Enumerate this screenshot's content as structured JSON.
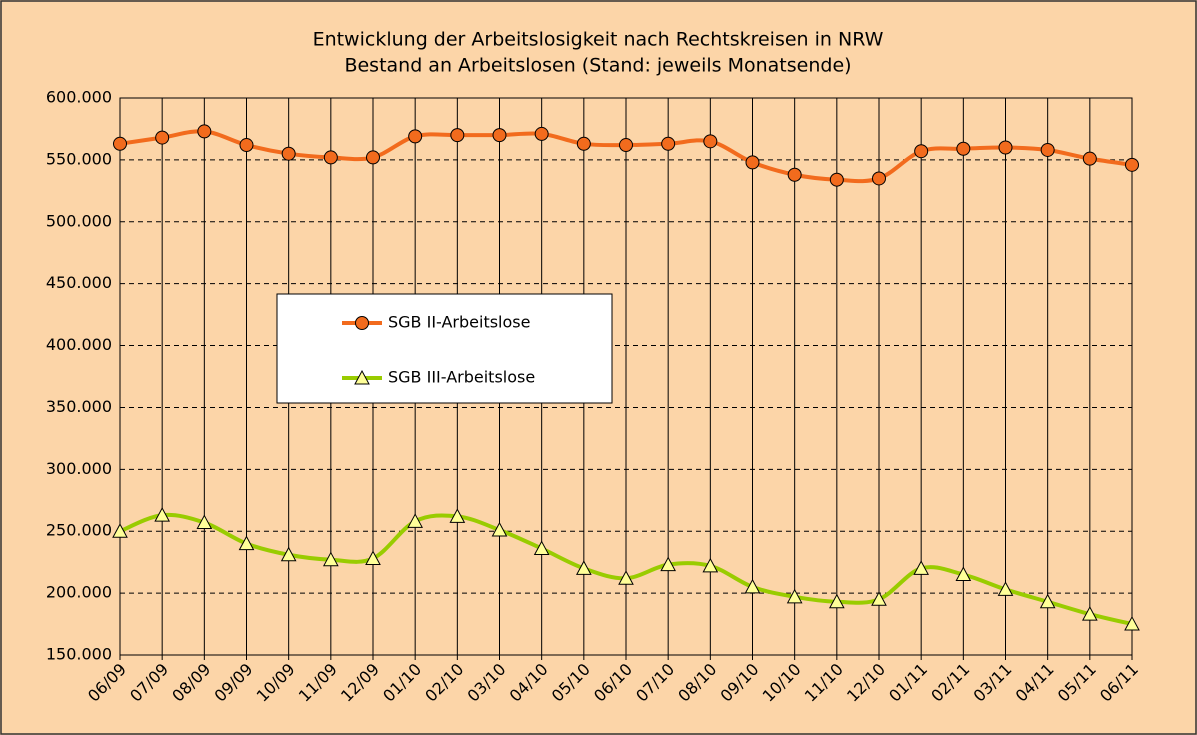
{
  "chart_data": {
    "type": "line",
    "title": "Entwicklung der Arbeitslosigkeit nach Rechtskreisen in NRW",
    "subtitle": "Bestand an Arbeitslosen (Stand: jeweils Monatsende)",
    "categories": [
      "06/09",
      "07/09",
      "08/09",
      "09/09",
      "10/09",
      "11/09",
      "12/09",
      "01/10",
      "02/10",
      "03/10",
      "04/10",
      "05/10",
      "06/10",
      "07/10",
      "08/10",
      "09/10",
      "10/10",
      "11/10",
      "12/10",
      "01/11",
      "02/11",
      "03/11",
      "04/11",
      "05/11",
      "06/11"
    ],
    "series": [
      {
        "name": "SGB II-Arbeitslose",
        "color": "#f26b1d",
        "marker": "circle",
        "values": [
          563000,
          568000,
          573000,
          562000,
          555000,
          552000,
          552000,
          569000,
          570000,
          570000,
          571000,
          563000,
          562000,
          563000,
          565000,
          548000,
          538000,
          534000,
          535000,
          557000,
          559000,
          560000,
          558000,
          551000,
          546000
        ]
      },
      {
        "name": "SGB III-Arbeitslose",
        "color": "#99cc00",
        "marker": "triangle",
        "values": [
          250000,
          263000,
          257000,
          240000,
          231000,
          227000,
          228000,
          258000,
          262000,
          251000,
          236000,
          220000,
          212000,
          223000,
          222000,
          205000,
          197000,
          193000,
          195000,
          220000,
          215000,
          203000,
          193000,
          183000,
          175000
        ]
      }
    ],
    "ylim": [
      150000,
      600000
    ],
    "yticks": [
      {
        "value": 150000,
        "label": "150.000"
      },
      {
        "value": 200000,
        "label": "200.000"
      },
      {
        "value": 250000,
        "label": "250.000"
      },
      {
        "value": 300000,
        "label": "300.000"
      },
      {
        "value": 350000,
        "label": "350.000"
      },
      {
        "value": 400000,
        "label": "400.000"
      },
      {
        "value": 450000,
        "label": "450.000"
      },
      {
        "value": 500000,
        "label": "500.000"
      },
      {
        "value": 550000,
        "label": "550.000"
      },
      {
        "value": 600000,
        "label": "600.000"
      }
    ],
    "grid": true
  }
}
